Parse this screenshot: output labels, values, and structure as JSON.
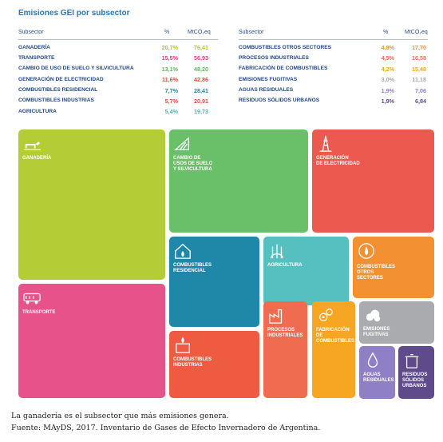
{
  "title": "Emisiones GEI por subsector",
  "table_left": {
    "headers": [
      "Subsector",
      "%",
      "MtCO₂eq"
    ],
    "rows": [
      {
        "name": "GANADERÍA",
        "pct": "20,7%",
        "val": "76,41",
        "color": "#b5c925"
      },
      {
        "name": "TRANSPORTE",
        "pct": "15,5%",
        "val": "56,93",
        "color": "#e8397f"
      },
      {
        "name": "CAMBIO DE USO DE SUELO Y SILVICULTURA",
        "pct": "13,1%",
        "val": "48,20",
        "color": "#5cb85c"
      },
      {
        "name": "GENERACIÓN DE ELECTRICIDAD",
        "pct": "11,6%",
        "val": "42,86",
        "color": "#e8473b"
      },
      {
        "name": "COMBUSTIBLES RESIDENCIAL",
        "pct": "7,7%",
        "val": "28,41",
        "color": "#1f8aa8"
      },
      {
        "name": "COMBUSTIBLES INDUSTRIAS",
        "pct": "5,7%",
        "val": "20,91",
        "color": "#e8473b"
      },
      {
        "name": "AGRICULTURA",
        "pct": "5,4%",
        "val": "19,73",
        "color": "#47b7b6"
      }
    ]
  },
  "table_right": {
    "headers": [
      "Subsector",
      "%",
      "MtCO₂eq"
    ],
    "rows": [
      {
        "name": "COMBUSTIBLES OTROS SECTORES",
        "pct": "4,8%",
        "val": "17,70",
        "color": "#f29130"
      },
      {
        "name": "PROCESOS INDUSTRIALES",
        "pct": "4,5%",
        "val": "16,58",
        "color": "#ee6c4d"
      },
      {
        "name": "FABRICACIÓN DE COMBUSTIBLES",
        "pct": "4,2%",
        "val": "15,48",
        "color": "#f5a623"
      },
      {
        "name": "EMISIONES FUGITIVAS",
        "pct": "3,0%",
        "val": "11,18",
        "color": "#a7a9ac"
      },
      {
        "name": "AGUAS RESIDUALES",
        "pct": "1,9%",
        "val": "7,06",
        "color": "#8e7cc3"
      },
      {
        "name": "RESIDUOS SÓLIDOS URBANOS",
        "pct": "1,9%",
        "val": "6,84",
        "color": "#5e4a8c"
      }
    ]
  },
  "chart_data": {
    "type": "treemap",
    "title": "Emisiones GEI por subsector",
    "unit": "MtCO₂eq",
    "items": [
      {
        "label": "GANADERÍA",
        "pct": 20.7,
        "value": 76.41,
        "color": "#b4cd37",
        "icon": "cow-icon"
      },
      {
        "label": "TRANSPORTE",
        "pct": 15.5,
        "value": 56.93,
        "color": "#e8528a",
        "icon": "truck-icon"
      },
      {
        "label": "CAMBIO DE\nUSOS DE SUELO\nY SILVICULTURA",
        "pct": 13.1,
        "value": 48.2,
        "color": "#6abf69",
        "icon": "forest-icon"
      },
      {
        "label": "GENERACIÓN\nDE ELECTRICIDAD",
        "pct": 11.6,
        "value": 42.86,
        "color": "#ec5a4f",
        "icon": "power-tower-icon"
      },
      {
        "label": "COMBUSTIBLES\nRESIDENCIAL",
        "pct": 7.7,
        "value": 28.41,
        "color": "#1f88a8",
        "icon": "house-flame-icon"
      },
      {
        "label": "AGRICULTURA",
        "pct": 5.4,
        "value": 19.73,
        "color": "#56c0c0",
        "icon": "wheat-icon"
      },
      {
        "label": "COMBUSTIBLES\nOTROS\nSECTORES",
        "pct": 4.8,
        "value": 17.7,
        "color": "#f39132",
        "icon": "fuel-icon"
      },
      {
        "label": "COMBUSTIBLES\nINDUSTRIAS",
        "pct": 5.7,
        "value": 20.91,
        "color": "#ee5b40",
        "icon": "factory-flame-icon"
      },
      {
        "label": "PROCESOS\nINDUSTRIALES",
        "pct": 4.5,
        "value": 16.58,
        "color": "#f06c50",
        "icon": "factory-icon"
      },
      {
        "label": "FABRICACIÓN\nDE\nCOMBUSTIBLES",
        "pct": 4.2,
        "value": 15.48,
        "color": "#f6a623",
        "icon": "gears-icon"
      },
      {
        "label": "EMISIONES\nFUGITIVAS",
        "pct": 3.0,
        "value": 11.18,
        "color": "#a9abae",
        "icon": "cloud-icon"
      },
      {
        "label": "AGUAS\nRESIDUALES",
        "pct": 1.9,
        "value": 7.06,
        "color": "#8f7fc6",
        "icon": "drop-icon"
      },
      {
        "label": "RESIDUOS\nSÓLIDOS\nURBANOS",
        "pct": 1.9,
        "value": 6.84,
        "color": "#5f4a8b",
        "icon": "trash-icon"
      }
    ]
  },
  "caption": {
    "line1": "La ganadería es el subsector que más emisiones genera.",
    "line2": "Fuente: MAyDS, 2017. Inventario de Gases de Efecto Invernadero de Argentina."
  }
}
